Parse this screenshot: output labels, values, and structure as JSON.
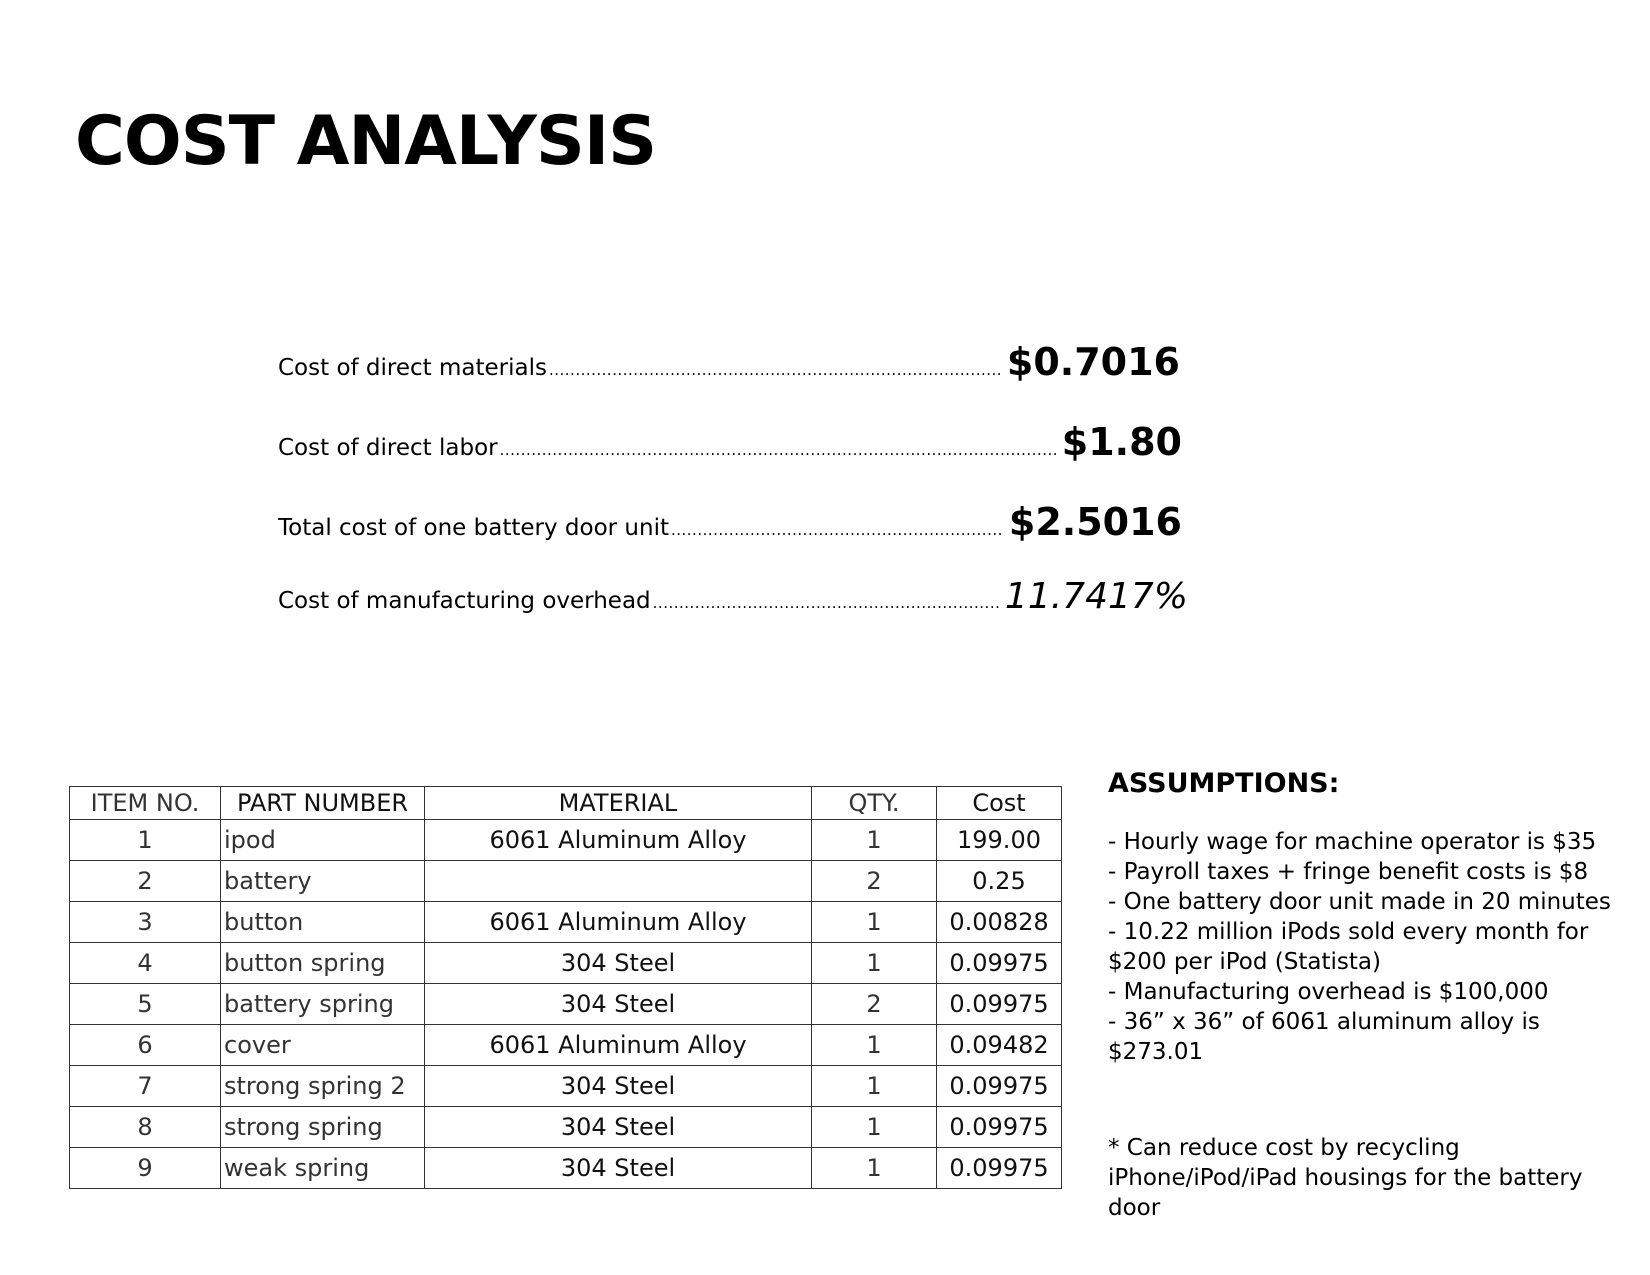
{
  "title": "COST ANALYSIS",
  "summary": [
    {
      "label": "Cost of direct materials",
      "value": "$0.7016"
    },
    {
      "label": "Cost of direct labor",
      "value": "$1.80"
    },
    {
      "label": "Total cost of one battery door unit",
      "value": "$2.5016"
    },
    {
      "label": "Cost of manufacturing overhead",
      "value": "11.7417%"
    }
  ],
  "table": {
    "headers": [
      "ITEM NO.",
      "PART NUMBER",
      "MATERIAL",
      "QTY.",
      "Cost"
    ],
    "rows": [
      {
        "item": "1",
        "part": "ipod",
        "material": "6061 Aluminum Alloy",
        "qty": "1",
        "cost": "199.00"
      },
      {
        "item": "2",
        "part": "battery",
        "material": "",
        "qty": "2",
        "cost": "0.25"
      },
      {
        "item": "3",
        "part": "button",
        "material": "6061 Aluminum Alloy",
        "qty": "1",
        "cost": "0.00828"
      },
      {
        "item": "4",
        "part": "button spring",
        "material": "304 Steel",
        "qty": "1",
        "cost": "0.09975"
      },
      {
        "item": "5",
        "part": "battery spring",
        "material": "304 Steel",
        "qty": "2",
        "cost": "0.09975"
      },
      {
        "item": "6",
        "part": "cover",
        "material": "6061 Aluminum Alloy",
        "qty": "1",
        "cost": "0.09482"
      },
      {
        "item": "7",
        "part": "strong spring 2",
        "material": "304 Steel",
        "qty": "1",
        "cost": "0.09975"
      },
      {
        "item": "8",
        "part": "strong spring",
        "material": "304 Steel",
        "qty": "1",
        "cost": "0.09975"
      },
      {
        "item": "9",
        "part": "weak spring",
        "material": "304 Steel",
        "qty": "1",
        "cost": "0.09975"
      }
    ]
  },
  "assumptions": {
    "title": "ASSUMPTIONS:",
    "items": [
      "- Hourly wage for machine operator is $35",
      "- Payroll taxes + fringe benefit costs is $8",
      "- One battery door unit made in 20 minutes",
      "- 10.22 million iPods sold every month for $200 per iPod (Statista)",
      "- Manufacturing overhead is $100,000",
      "- 36” x 36” of 6061 aluminum alloy is $273.01"
    ],
    "note": "* Can reduce cost by recycling iPhone/iPod/iPad housings for the battery door"
  }
}
